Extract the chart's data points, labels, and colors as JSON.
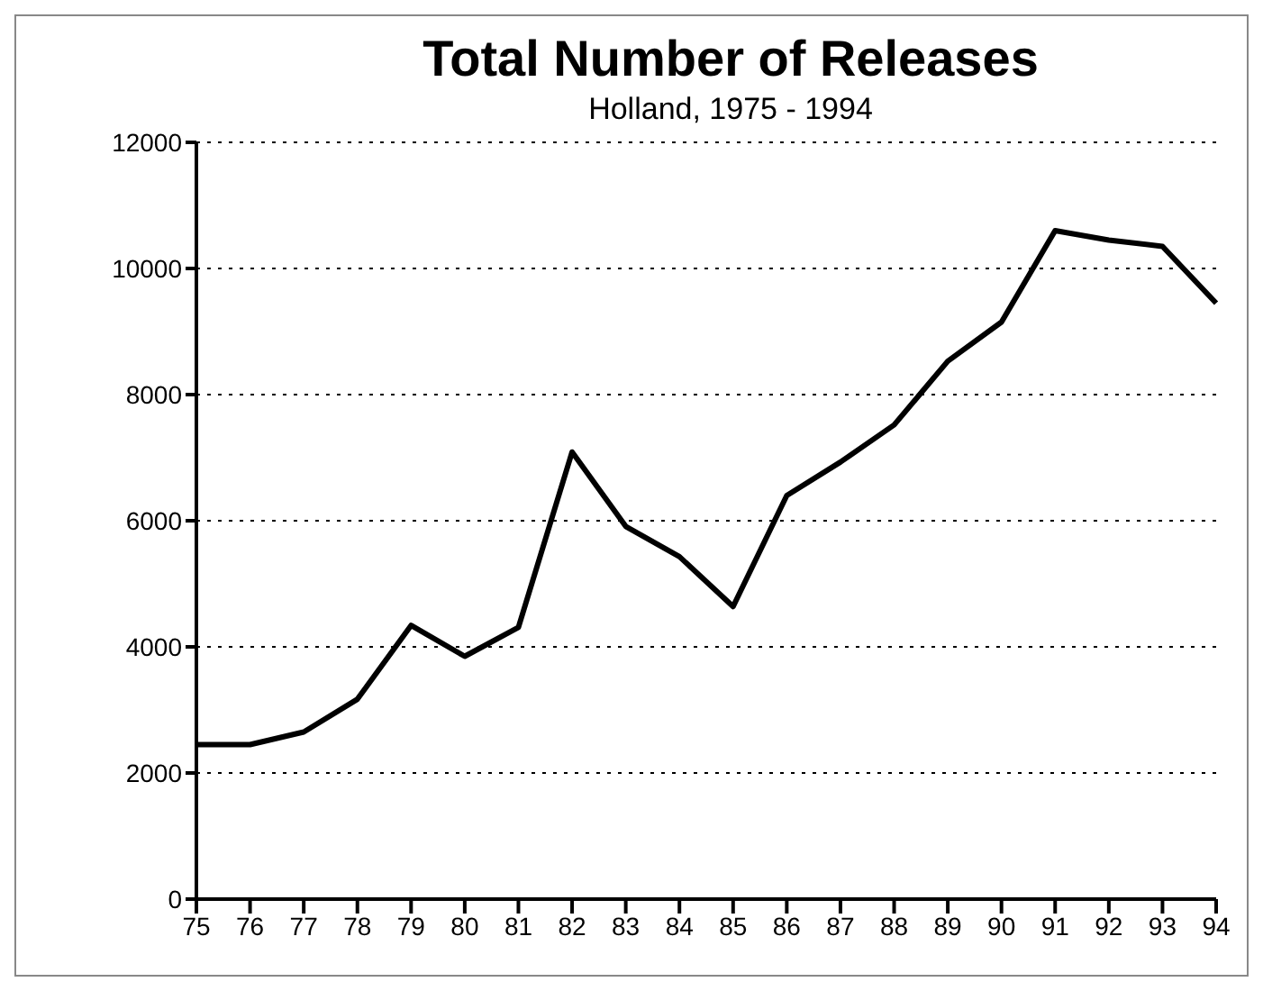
{
  "chart_data": {
    "type": "line",
    "title": "Total Number of Releases",
    "subtitle": "Holland, 1975 - 1994",
    "categories": [
      "75",
      "76",
      "77",
      "78",
      "79",
      "80",
      "81",
      "82",
      "83",
      "84",
      "85",
      "86",
      "87",
      "88",
      "89",
      "90",
      "91",
      "92",
      "93",
      "94"
    ],
    "series": [
      {
        "color": "#000000",
        "values": [
          2450,
          2450,
          2650,
          3170,
          4340,
          3850,
          4310,
          7090,
          5910,
          5430,
          4640,
          6400,
          6930,
          7520,
          8530,
          9150,
          10600,
          10450,
          10350,
          9450
        ]
      }
    ],
    "ylim": [
      0,
      12000
    ],
    "yticks": [
      0,
      2000,
      4000,
      6000,
      8000,
      10000,
      12000
    ],
    "grid": "y",
    "legend": false,
    "marker": "none",
    "line_style": "solid"
  }
}
